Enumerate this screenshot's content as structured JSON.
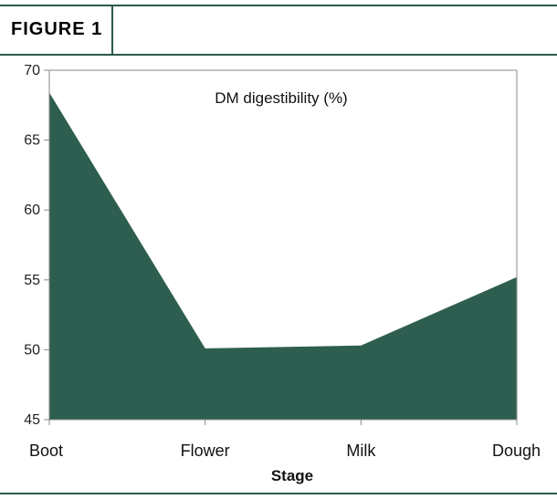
{
  "figure_label": "FIGURE 1",
  "colors": {
    "frame": "#2b5a4c",
    "area_fill": "#2e5e50",
    "axis": "#888888"
  },
  "chart_data": {
    "type": "area",
    "title": "DM digestibility (%)",
    "xlabel": "Stage",
    "ylabel": "",
    "categories": [
      "Boot",
      "Flower",
      "Milk",
      "Dough"
    ],
    "series": [
      {
        "values": [
          68.4,
          50.1,
          50.3,
          55.2
        ]
      }
    ],
    "ylim": [
      45,
      70
    ],
    "yticks": [
      45,
      50,
      55,
      60,
      65,
      70
    ],
    "grid": false,
    "legend": "none"
  }
}
